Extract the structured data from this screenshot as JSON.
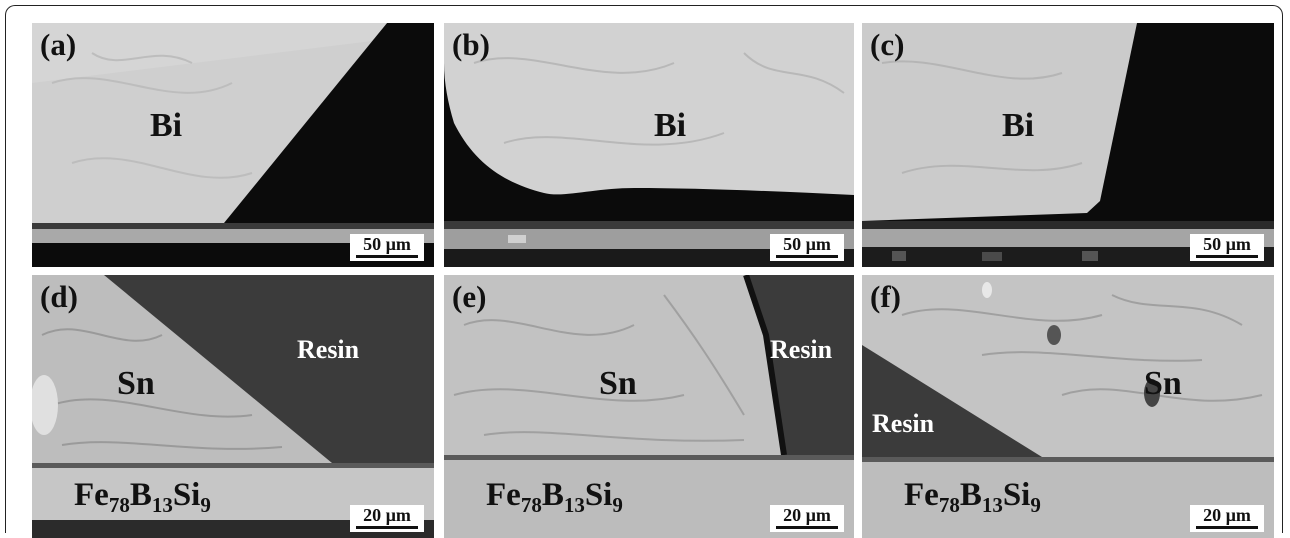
{
  "panels": [
    {
      "label": "(a)",
      "material": "Bi",
      "scale": "50 µm"
    },
    {
      "label": "(b)",
      "material": "Bi",
      "scale": "50 µm"
    },
    {
      "label": "(c)",
      "material": "Bi",
      "scale": "50 µm"
    },
    {
      "label": "(d)",
      "material": "Sn",
      "resin": "Resin",
      "substrate": {
        "el1": "Fe",
        "n1": "78",
        "el2": "B",
        "n2": "13",
        "el3": "Si",
        "n3": "9"
      },
      "scale": "20 µm"
    },
    {
      "label": "(e)",
      "material": "Sn",
      "resin": "Resin",
      "substrate": {
        "el1": "Fe",
        "n1": "78",
        "el2": "B",
        "n2": "13",
        "el3": "Si",
        "n3": "9"
      },
      "scale": "20 µm"
    },
    {
      "label": "(f)",
      "material": "Sn",
      "resin": "Resin",
      "substrate": {
        "el1": "Fe",
        "n1": "78",
        "el2": "B",
        "n2": "13",
        "el3": "Si",
        "n3": "9"
      },
      "scale": "20 µm"
    }
  ]
}
